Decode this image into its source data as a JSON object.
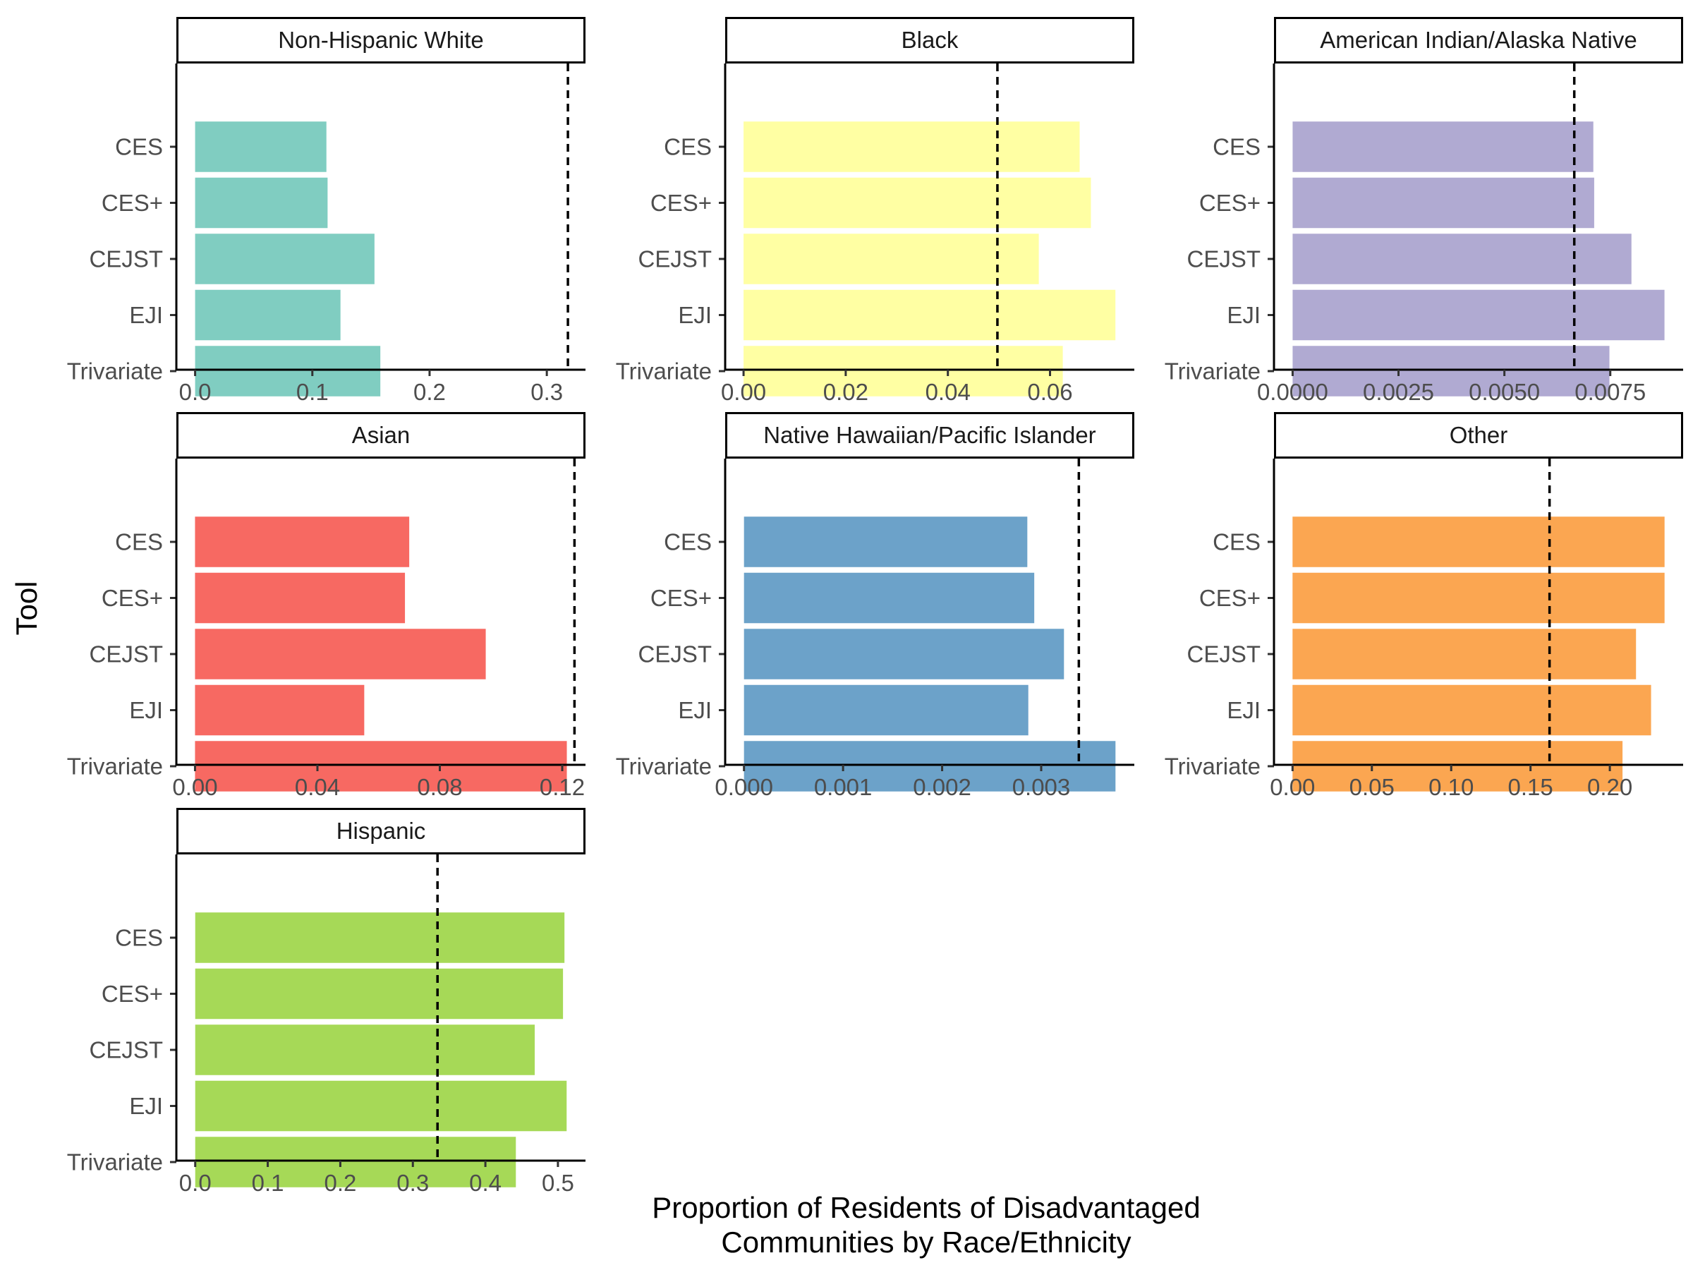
{
  "chart_data": {
    "type": "bar",
    "orientation": "horizontal",
    "layout": "facet_wrap",
    "facet_columns": 3,
    "categories": [
      "CES",
      "CES+",
      "CEJST",
      "EJI",
      "Trivariate"
    ],
    "xlabel": "Proportion of Residents of Disadvantaged\nCommunities by Race/Ethnicity",
    "ylabel": "Tool",
    "grid": false,
    "legend": "none",
    "reference_line_style": "dashed",
    "facets": [
      {
        "name": "Non-Hispanic White",
        "color": "#80cdc1",
        "values": [
          0.112,
          0.113,
          0.153,
          0.124,
          0.158
        ],
        "reference_line": 0.318,
        "xlim": [
          -0.016,
          0.333
        ],
        "ticks": [
          0.0,
          0.1,
          0.2,
          0.3
        ],
        "tick_labels": [
          "0.0",
          "0.1",
          "0.2",
          "0.3"
        ]
      },
      {
        "name": "Black",
        "color": "#ffffa3",
        "values": [
          0.0658,
          0.068,
          0.0578,
          0.0728,
          0.0625
        ],
        "reference_line": 0.0497,
        "xlim": [
          -0.0036,
          0.0765
        ],
        "ticks": [
          0.0,
          0.02,
          0.04,
          0.06
        ],
        "tick_labels": [
          "0.00",
          "0.02",
          "0.04",
          "0.06"
        ]
      },
      {
        "name": "American Indian/Alaska Native",
        "color": "#b0aad2",
        "values": [
          0.0071,
          0.00712,
          0.008,
          0.00878,
          0.00748
        ],
        "reference_line": 0.00665,
        "xlim": [
          -0.00044,
          0.00922
        ],
        "ticks": [
          0.0,
          0.0025,
          0.005,
          0.0075
        ],
        "tick_labels": [
          "0.0000",
          "0.0025",
          "0.0050",
          "0.0075"
        ]
      },
      {
        "name": "Asian",
        "color": "#f76962",
        "values": [
          0.07,
          0.0686,
          0.095,
          0.0553,
          0.1215
        ],
        "reference_line": 0.124,
        "xlim": [
          -0.0061,
          0.1276
        ],
        "ticks": [
          0.0,
          0.04,
          0.08,
          0.12
        ],
        "tick_labels": [
          "0.00",
          "0.04",
          "0.08",
          "0.12"
        ]
      },
      {
        "name": "Native Hawaiian/Pacific Islander",
        "color": "#6ca2c9",
        "values": [
          0.00286,
          0.00293,
          0.00323,
          0.00287,
          0.00375
        ],
        "reference_line": 0.00338,
        "xlim": [
          -0.00019,
          0.00394
        ],
        "ticks": [
          0.0,
          0.001,
          0.002,
          0.003
        ],
        "tick_labels": [
          "0.000",
          "0.001",
          "0.002",
          "0.003"
        ]
      },
      {
        "name": "Other",
        "color": "#fba651",
        "values": [
          0.2345,
          0.2345,
          0.2165,
          0.226,
          0.208
        ],
        "reference_line": 0.162,
        "xlim": [
          -0.0117,
          0.2462
        ],
        "ticks": [
          0.0,
          0.05,
          0.1,
          0.15,
          0.2
        ],
        "tick_labels": [
          "0.00",
          "0.05",
          "0.10",
          "0.15",
          "0.20"
        ]
      },
      {
        "name": "Hispanic",
        "color": "#a6d957",
        "values": [
          0.509,
          0.507,
          0.468,
          0.512,
          0.442
        ],
        "reference_line": 0.334,
        "xlim": [
          -0.026,
          0.538
        ],
        "ticks": [
          0.0,
          0.1,
          0.2,
          0.3,
          0.4,
          0.5
        ],
        "tick_labels": [
          "0.0",
          "0.1",
          "0.2",
          "0.3",
          "0.4",
          "0.5"
        ]
      }
    ]
  }
}
